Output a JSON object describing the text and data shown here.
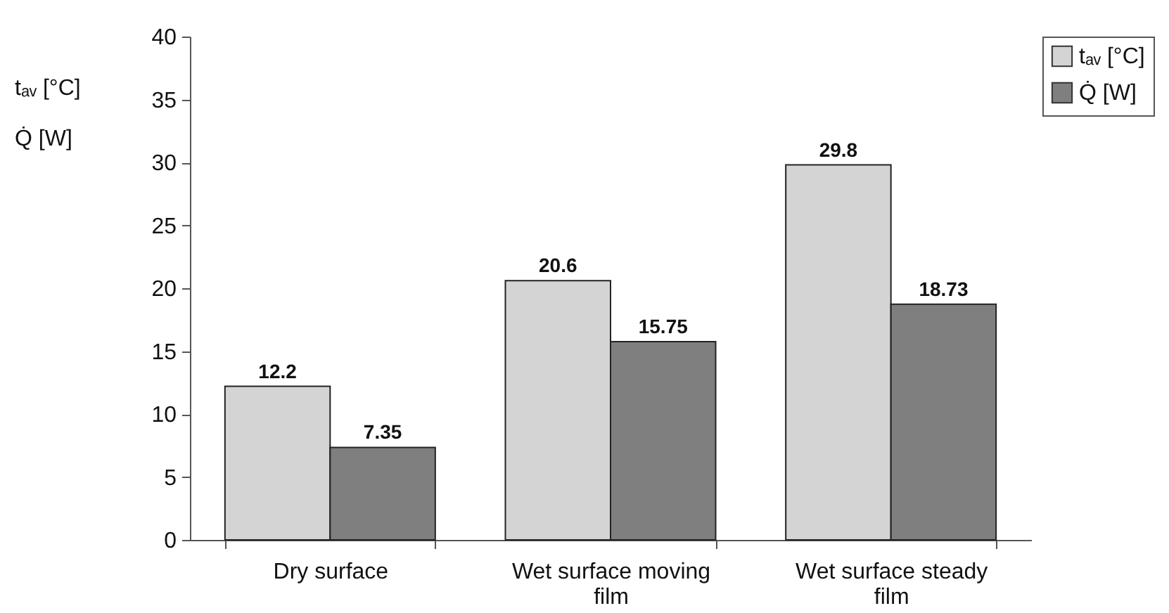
{
  "chart_data": {
    "type": "bar",
    "ylabel": "tₐᵥ [°C]\nQ̇ [W]",
    "categories": [
      "Dry surface",
      "Wet surface moving film",
      "Wet surface steady film"
    ],
    "series": [
      {
        "name": "tₐᵥ [°C]",
        "color": "#d4d4d4",
        "values": [
          12.2,
          20.6,
          29.8
        ]
      },
      {
        "name": "Q̇ [W]",
        "color": "#7f7f7f",
        "values": [
          7.35,
          15.75,
          18.73
        ]
      }
    ],
    "ylim": [
      0,
      40
    ],
    "yticks": [
      0,
      5,
      10,
      15,
      20,
      25,
      30,
      35,
      40
    ],
    "grid": false,
    "legend": "right",
    "data_labels": true
  }
}
